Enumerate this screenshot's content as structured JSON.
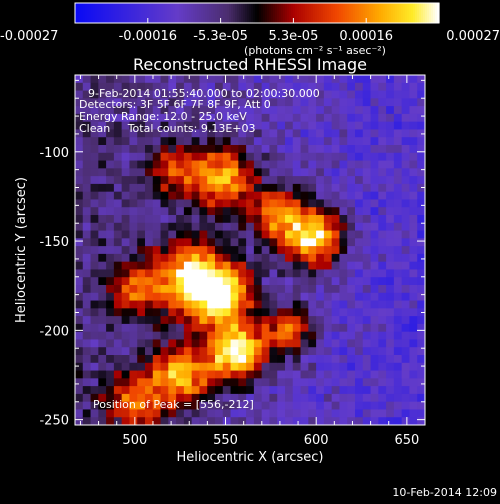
{
  "chart_data": {
    "type": "heatmap",
    "title": "Reconstructed RHESSI Image",
    "xlabel": "Heliocentric X (arcsec)",
    "ylabel": "Heliocentric Y (arcsec)",
    "xlim": [
      467,
      660
    ],
    "ylim": [
      -253,
      -57
    ],
    "xticks": [
      500,
      550,
      600,
      650
    ],
    "yticks": [
      -100,
      -150,
      -200,
      -250
    ],
    "colorbar": {
      "min": -0.00027,
      "max": 0.00027,
      "tick_labels": [
        "-0.00027",
        "-0.00016",
        "-5.3e-05",
        "5.3e-05",
        "0.00016",
        "0.00027"
      ],
      "unit_label": "(photons cm⁻² s⁻¹ asec⁻²)"
    },
    "annotations": {
      "time": "9-Feb-2014 01:55:40.000 to 02:00:30.000",
      "detectors": "Detectors: 3F 5F 6F 7F 8F 9F, Att 0",
      "energy": "Energy Range: 12.0 - 25.0 keV",
      "clean": "Clean     Total counts: 9.13E+03",
      "peak": "Position of Peak = [556,-212]"
    },
    "peak": {
      "x": 556,
      "y": -212
    },
    "bright_regions": [
      {
        "x": 548,
        "y": -115,
        "sigma": 13,
        "level": 0.75
      },
      {
        "x": 520,
        "y": -110,
        "sigma": 10,
        "level": 0.5
      },
      {
        "x": 598,
        "y": -148,
        "sigma": 12,
        "level": 0.9
      },
      {
        "x": 578,
        "y": -135,
        "sigma": 10,
        "level": 0.6
      },
      {
        "x": 530,
        "y": -170,
        "sigma": 14,
        "level": 0.85
      },
      {
        "x": 548,
        "y": -180,
        "sigma": 12,
        "level": 0.9
      },
      {
        "x": 500,
        "y": -178,
        "sigma": 10,
        "level": 0.55
      },
      {
        "x": 556,
        "y": -212,
        "sigma": 11,
        "level": 1.0
      },
      {
        "x": 525,
        "y": -225,
        "sigma": 12,
        "level": 0.75
      },
      {
        "x": 585,
        "y": -200,
        "sigma": 10,
        "level": 0.55
      },
      {
        "x": 500,
        "y": -240,
        "sigma": 11,
        "level": 0.6
      }
    ],
    "timestamp": "10-Feb-2014 12:09"
  }
}
